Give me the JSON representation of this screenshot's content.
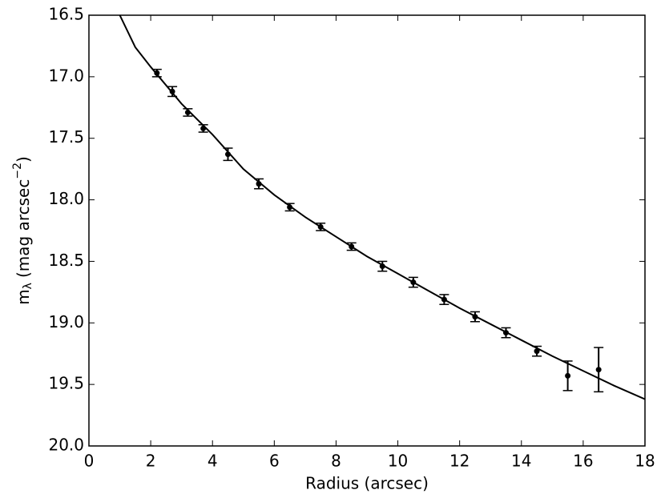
{
  "chart_data": {
    "type": "scatter",
    "xlabel": "Radius (arcsec)",
    "ylabel": {
      "main": "m",
      "sub": "λ",
      "unit": "(mag  arcsec",
      "sup": "−2",
      "close": ")"
    },
    "xlim": [
      0,
      18
    ],
    "xticks": [
      0,
      2,
      4,
      6,
      8,
      10,
      12,
      14,
      16,
      18
    ],
    "ylim": [
      20.0,
      16.5
    ],
    "yticks": [
      16.5,
      {
        "value": 17.0,
        "label": "17.0"
      },
      17.5,
      {
        "value": 18.0,
        "label": "18.0"
      },
      18.5,
      {
        "value": 19.0,
        "label": "19.0"
      },
      19.5,
      {
        "value": 20.0,
        "label": "20.0"
      }
    ],
    "points": {
      "color": "#000000",
      "x": [
        2.2,
        2.7,
        3.2,
        3.7,
        4.5,
        5.5,
        6.5,
        7.5,
        8.5,
        9.5,
        10.5,
        11.5,
        12.5,
        13.5,
        14.5,
        15.5,
        16.5
      ],
      "values": [
        16.97,
        17.12,
        17.29,
        17.42,
        17.63,
        17.87,
        18.06,
        18.22,
        18.38,
        18.54,
        18.67,
        18.81,
        18.95,
        19.08,
        19.23,
        19.43,
        19.38
      ],
      "errors": [
        0.03,
        0.04,
        0.03,
        0.03,
        0.05,
        0.04,
        0.03,
        0.03,
        0.03,
        0.04,
        0.04,
        0.04,
        0.04,
        0.04,
        0.04,
        0.12,
        0.18
      ]
    },
    "fit": {
      "color": "#000000",
      "x": [
        1,
        1.5,
        2,
        3,
        4,
        5,
        6,
        7,
        8,
        9,
        10,
        11,
        12,
        13,
        14,
        15,
        16,
        17,
        18
      ],
      "values": [
        16.5,
        16.76,
        16.92,
        17.22,
        17.47,
        17.75,
        17.96,
        18.14,
        18.3,
        18.46,
        18.6,
        18.74,
        18.88,
        19.01,
        19.14,
        19.27,
        19.39,
        19.51,
        19.62
      ]
    }
  }
}
